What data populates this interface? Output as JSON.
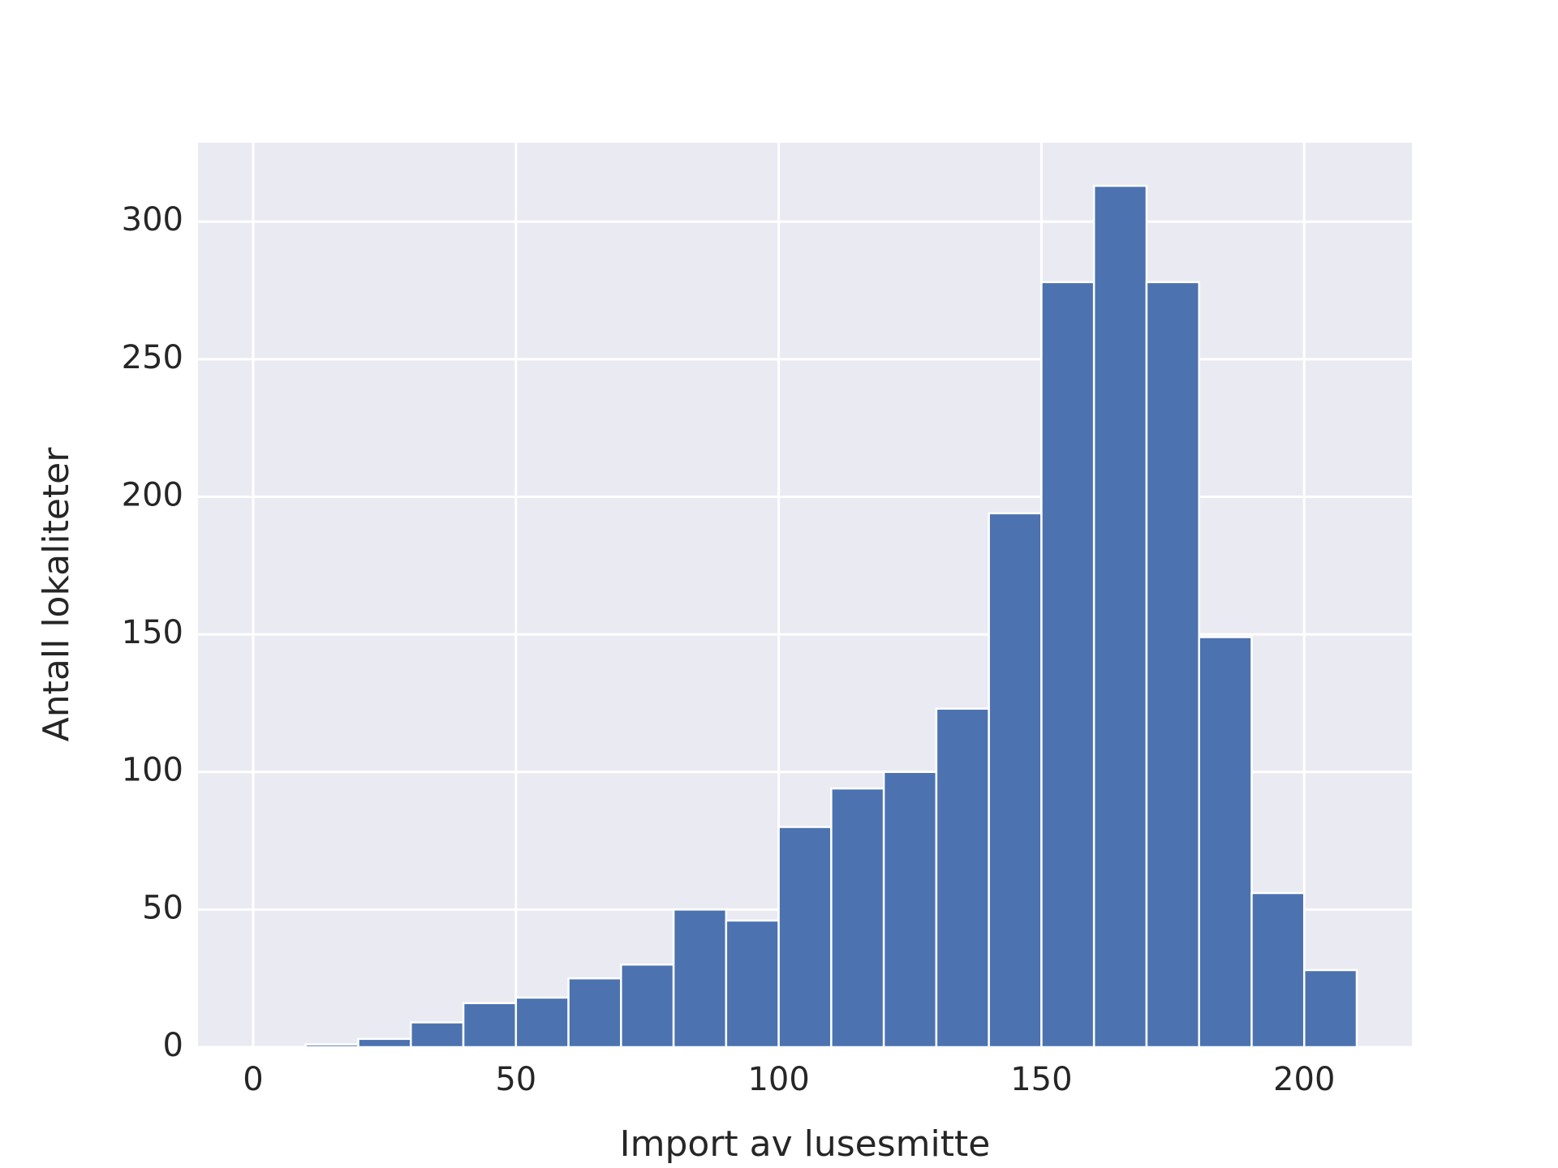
{
  "chart_data": {
    "type": "histogram",
    "xlabel": "Import av lusesmitte",
    "ylabel": "Antall lokaliteter",
    "bins": [
      0,
      10,
      20,
      30,
      40,
      50,
      60,
      70,
      80,
      90,
      100,
      110,
      120,
      130,
      140,
      150,
      160,
      170,
      180,
      190,
      200,
      210
    ],
    "counts": [
      0,
      1,
      3,
      9,
      16,
      18,
      25,
      30,
      50,
      46,
      80,
      94,
      100,
      123,
      194,
      278,
      313,
      278,
      149,
      56,
      28
    ],
    "color": "#4c72b0",
    "xlim": [
      -10.5,
      220.5
    ],
    "xticks": [
      0,
      50,
      100,
      150,
      200
    ],
    "ylim": [
      0,
      328.65
    ],
    "yticks": [
      0,
      50,
      100,
      150,
      200,
      250,
      300
    ],
    "grid": true
  }
}
